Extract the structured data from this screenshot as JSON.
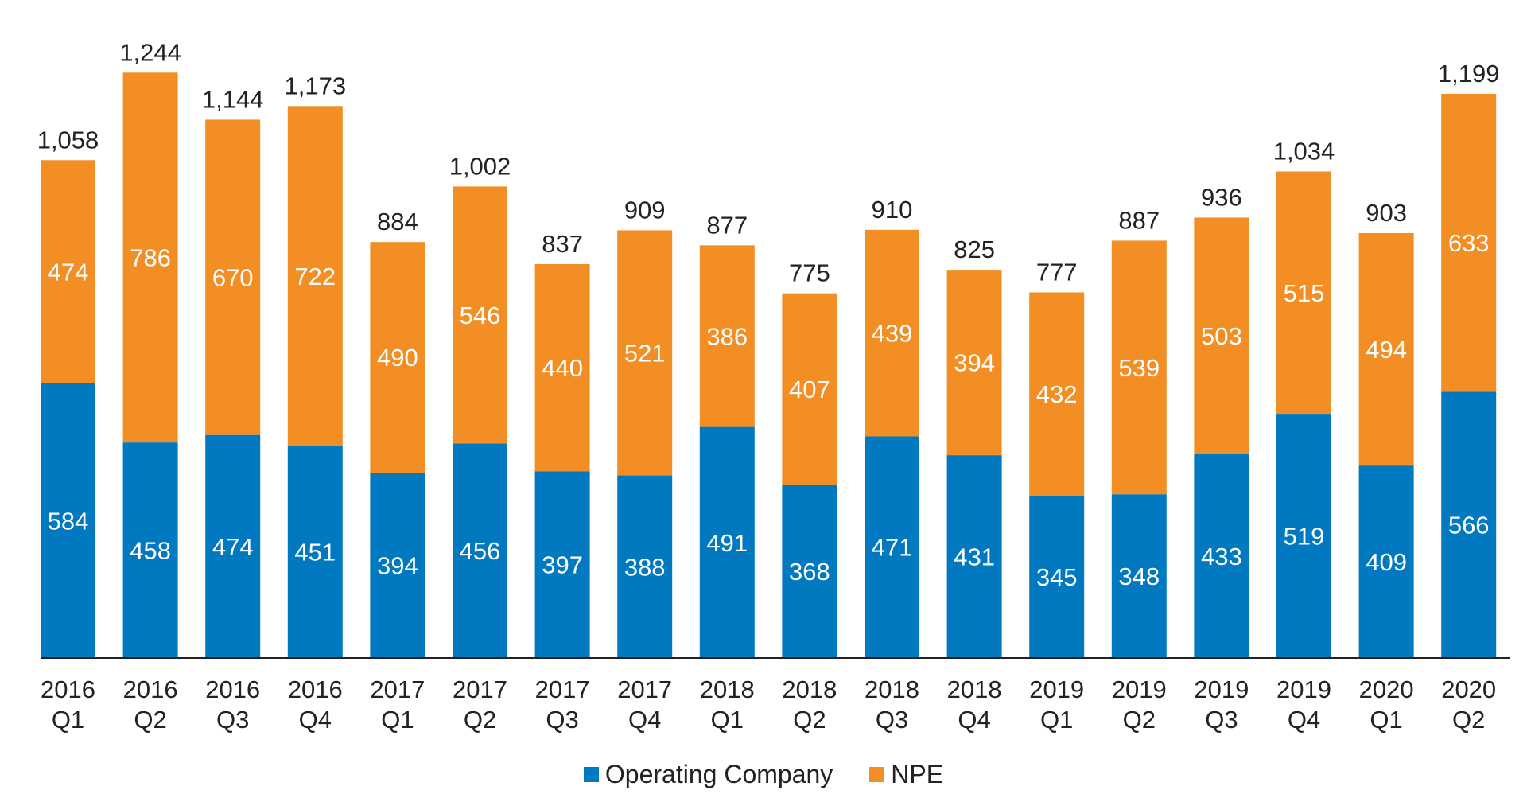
{
  "chart_data": {
    "type": "bar",
    "stacked": true,
    "title": "",
    "xlabel": "",
    "ylabel": "",
    "ylim": [
      0,
      1300
    ],
    "grid": false,
    "legend_position": "bottom-center",
    "categories": [
      [
        "2016",
        "Q1"
      ],
      [
        "2016",
        "Q2"
      ],
      [
        "2016",
        "Q3"
      ],
      [
        "2016",
        "Q4"
      ],
      [
        "2017",
        "Q1"
      ],
      [
        "2017",
        "Q2"
      ],
      [
        "2017",
        "Q3"
      ],
      [
        "2017",
        "Q4"
      ],
      [
        "2018",
        "Q1"
      ],
      [
        "2018",
        "Q2"
      ],
      [
        "2018",
        "Q3"
      ],
      [
        "2018",
        "Q4"
      ],
      [
        "2019",
        "Q1"
      ],
      [
        "2019",
        "Q2"
      ],
      [
        "2019",
        "Q3"
      ],
      [
        "2019",
        "Q4"
      ],
      [
        "2020",
        "Q1"
      ],
      [
        "2020",
        "Q2"
      ]
    ],
    "series": [
      {
        "name": "Operating Company",
        "color": "#0079C1",
        "values": [
          584,
          458,
          474,
          451,
          394,
          456,
          397,
          388,
          491,
          368,
          471,
          431,
          345,
          348,
          433,
          519,
          409,
          566
        ]
      },
      {
        "name": "NPE",
        "color": "#F28E23",
        "values": [
          474,
          786,
          670,
          722,
          490,
          546,
          440,
          521,
          386,
          407,
          439,
          394,
          432,
          539,
          503,
          515,
          494,
          633
        ]
      }
    ],
    "totals": [
      "1,058",
      "1,244",
      "1,144",
      "1,173",
      "884",
      "1,002",
      "837",
      "909",
      "877",
      "775",
      "910",
      "825",
      "777",
      "887",
      "936",
      "1,034",
      "903",
      "1,199"
    ]
  }
}
